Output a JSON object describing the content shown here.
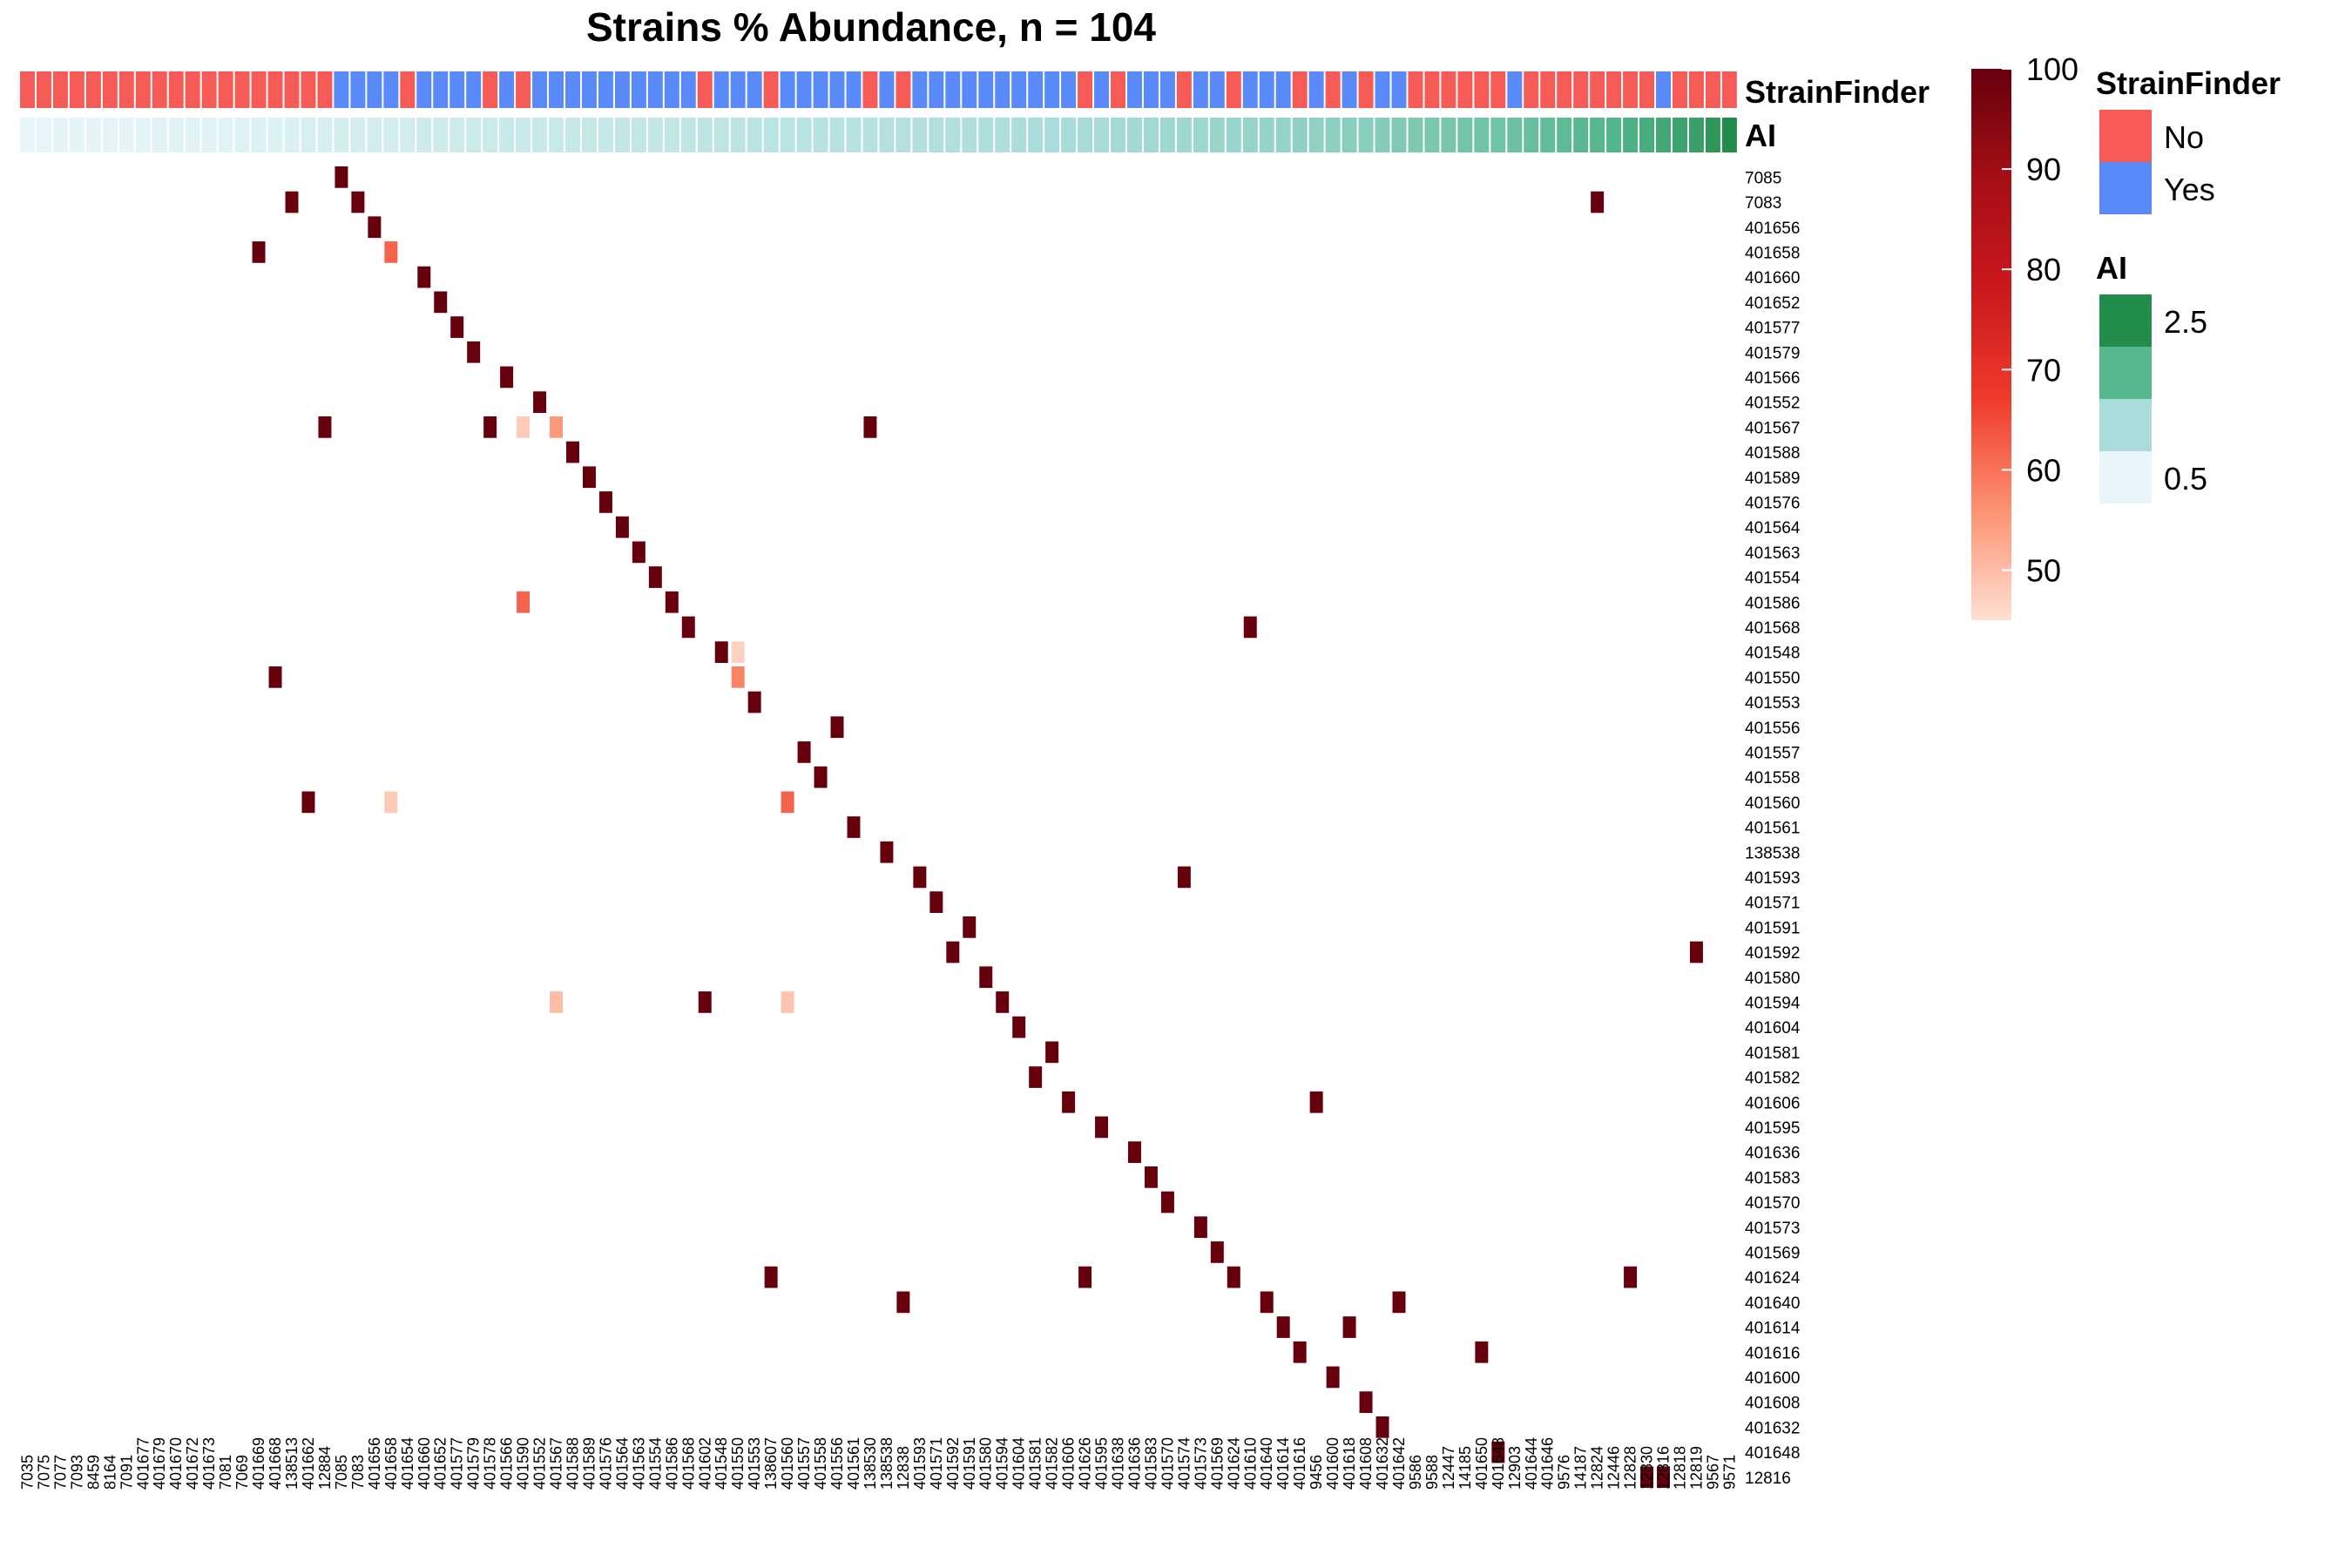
{
  "chart_data": {
    "type": "heatmap",
    "title": "Strains % Abundance, n = 104",
    "columns": [
      "7035",
      "7075",
      "7077",
      "7093",
      "8459",
      "8164",
      "7091",
      "401677",
      "401679",
      "401670",
      "401672",
      "401673",
      "7081",
      "7069",
      "401669",
      "401668",
      "138513",
      "401662",
      "12884",
      "7085",
      "7083",
      "401656",
      "401658",
      "401654",
      "401660",
      "401652",
      "401577",
      "401579",
      "401578",
      "401566",
      "401590",
      "401552",
      "401567",
      "401588",
      "401589",
      "401576",
      "401564",
      "401563",
      "401554",
      "401586",
      "401568",
      "401602",
      "401548",
      "401550",
      "401553",
      "138607",
      "401560",
      "401557",
      "401558",
      "401556",
      "401561",
      "138530",
      "138538",
      "12838",
      "401593",
      "401571",
      "401592",
      "401591",
      "401580",
      "401594",
      "401604",
      "401581",
      "401582",
      "401606",
      "401626",
      "401595",
      "401638",
      "401636",
      "401583",
      "401570",
      "401574",
      "401573",
      "401569",
      "401624",
      "401610",
      "401640",
      "401614",
      "401616",
      "9456",
      "401600",
      "401618",
      "401608",
      "401632",
      "401642",
      "9586",
      "9588",
      "12447",
      "14185",
      "401650",
      "401648",
      "12903",
      "401644",
      "401646",
      "9576",
      "14187",
      "12824",
      "12446",
      "12828",
      "12830",
      "12816",
      "12818",
      "12819",
      "9567",
      "9571"
    ],
    "rows": [
      "7085",
      "7083",
      "401656",
      "401658",
      "401660",
      "401652",
      "401577",
      "401579",
      "401566",
      "401552",
      "401567",
      "401588",
      "401589",
      "401576",
      "401564",
      "401563",
      "401554",
      "401586",
      "401568",
      "401548",
      "401550",
      "401553",
      "401556",
      "401557",
      "401558",
      "401560",
      "401561",
      "138538",
      "401593",
      "401571",
      "401591",
      "401592",
      "401580",
      "401594",
      "401604",
      "401581",
      "401582",
      "401606",
      "401595",
      "401636",
      "401583",
      "401570",
      "401573",
      "401569",
      "401624",
      "401640",
      "401614",
      "401616",
      "401600",
      "401608",
      "401632",
      "401648",
      "12816"
    ],
    "cells": [
      [
        0,
        19,
        100
      ],
      [
        1,
        16,
        100
      ],
      [
        1,
        20,
        100
      ],
      [
        1,
        95,
        100
      ],
      [
        2,
        21,
        100
      ],
      [
        3,
        14,
        100
      ],
      [
        3,
        22,
        62
      ],
      [
        4,
        24,
        100
      ],
      [
        5,
        25,
        100
      ],
      [
        6,
        26,
        100
      ],
      [
        7,
        27,
        100
      ],
      [
        8,
        29,
        100
      ],
      [
        9,
        31,
        100
      ],
      [
        10,
        18,
        100
      ],
      [
        10,
        28,
        100
      ],
      [
        10,
        30,
        48
      ],
      [
        10,
        32,
        55
      ],
      [
        10,
        51,
        100
      ],
      [
        11,
        33,
        100
      ],
      [
        12,
        34,
        100
      ],
      [
        13,
        35,
        100
      ],
      [
        14,
        36,
        100
      ],
      [
        15,
        37,
        100
      ],
      [
        16,
        38,
        100
      ],
      [
        17,
        39,
        100
      ],
      [
        17,
        30,
        62
      ],
      [
        18,
        40,
        100
      ],
      [
        18,
        74,
        100
      ],
      [
        19,
        42,
        100
      ],
      [
        19,
        43,
        47
      ],
      [
        20,
        15,
        100
      ],
      [
        20,
        43,
        58
      ],
      [
        21,
        44,
        100
      ],
      [
        22,
        49,
        100
      ],
      [
        23,
        47,
        100
      ],
      [
        24,
        48,
        100
      ],
      [
        25,
        17,
        100
      ],
      [
        25,
        22,
        48
      ],
      [
        25,
        46,
        62
      ],
      [
        26,
        50,
        100
      ],
      [
        27,
        52,
        100
      ],
      [
        28,
        54,
        100
      ],
      [
        28,
        70,
        100
      ],
      [
        29,
        55,
        100
      ],
      [
        30,
        57,
        100
      ],
      [
        31,
        56,
        100
      ],
      [
        31,
        101,
        100
      ],
      [
        32,
        58,
        100
      ],
      [
        33,
        59,
        100
      ],
      [
        33,
        32,
        50
      ],
      [
        33,
        41,
        100
      ],
      [
        33,
        46,
        49
      ],
      [
        34,
        60,
        100
      ],
      [
        35,
        62,
        100
      ],
      [
        36,
        61,
        100
      ],
      [
        37,
        63,
        100
      ],
      [
        37,
        78,
        100
      ],
      [
        38,
        65,
        100
      ],
      [
        39,
        67,
        100
      ],
      [
        40,
        68,
        100
      ],
      [
        41,
        69,
        100
      ],
      [
        42,
        71,
        100
      ],
      [
        43,
        72,
        100
      ],
      [
        44,
        73,
        100
      ],
      [
        44,
        45,
        100
      ],
      [
        44,
        64,
        100
      ],
      [
        44,
        97,
        100
      ],
      [
        45,
        75,
        100
      ],
      [
        45,
        53,
        100
      ],
      [
        45,
        83,
        100
      ],
      [
        46,
        76,
        100
      ],
      [
        46,
        80,
        100
      ],
      [
        47,
        77,
        100
      ],
      [
        47,
        88,
        100
      ],
      [
        48,
        79,
        100
      ],
      [
        49,
        81,
        100
      ],
      [
        50,
        82,
        100
      ],
      [
        51,
        89,
        100
      ],
      [
        52,
        98,
        100
      ],
      [
        52,
        99,
        100
      ]
    ],
    "annotations": {
      "StrainFinder": [
        "No",
        "No",
        "No",
        "No",
        "No",
        "No",
        "No",
        "No",
        "No",
        "No",
        "No",
        "No",
        "No",
        "No",
        "No",
        "No",
        "No",
        "No",
        "No",
        "Yes",
        "Yes",
        "Yes",
        "Yes",
        "No",
        "Yes",
        "Yes",
        "Yes",
        "Yes",
        "No",
        "Yes",
        "No",
        "Yes",
        "Yes",
        "Yes",
        "Yes",
        "Yes",
        "Yes",
        "Yes",
        "Yes",
        "Yes",
        "Yes",
        "No",
        "Yes",
        "Yes",
        "Yes",
        "No",
        "Yes",
        "Yes",
        "Yes",
        "Yes",
        "Yes",
        "No",
        "Yes",
        "No",
        "Yes",
        "Yes",
        "Yes",
        "Yes",
        "Yes",
        "Yes",
        "Yes",
        "Yes",
        "Yes",
        "Yes",
        "No",
        "Yes",
        "No",
        "Yes",
        "Yes",
        "Yes",
        "No",
        "Yes",
        "Yes",
        "No",
        "Yes",
        "Yes",
        "Yes",
        "No",
        "Yes",
        "No",
        "Yes",
        "No",
        "Yes",
        "Yes",
        "No",
        "No",
        "No",
        "No",
        "No",
        "No",
        "Yes",
        "No",
        "No",
        "No",
        "No",
        "No",
        "No",
        "No",
        "No",
        "Yes",
        "No",
        "No",
        "No",
        "No"
      ],
      "AI": [
        0.1,
        0.12,
        0.15,
        0.15,
        0.15,
        0.15,
        0.15,
        0.18,
        0.2,
        0.2,
        0.2,
        0.2,
        0.22,
        0.25,
        0.3,
        0.3,
        0.32,
        0.35,
        0.35,
        0.4,
        0.4,
        0.42,
        0.45,
        0.45,
        0.5,
        0.5,
        0.5,
        0.55,
        0.55,
        0.6,
        0.6,
        0.6,
        0.6,
        0.62,
        0.65,
        0.65,
        0.68,
        0.7,
        0.7,
        0.7,
        0.72,
        0.75,
        0.75,
        0.78,
        0.8,
        0.8,
        0.8,
        0.82,
        0.85,
        0.85,
        0.85,
        0.88,
        0.9,
        0.9,
        0.92,
        0.95,
        0.95,
        0.98,
        1.0,
        1.0,
        1.02,
        1.05,
        1.05,
        1.08,
        1.1,
        1.1,
        1.12,
        1.15,
        1.15,
        1.18,
        1.2,
        1.2,
        1.25,
        1.25,
        1.3,
        1.3,
        1.32,
        1.35,
        1.35,
        1.4,
        1.45,
        1.45,
        1.5,
        1.55,
        1.6,
        1.62,
        1.65,
        1.7,
        1.72,
        1.75,
        1.8,
        1.85,
        1.9,
        1.95,
        2.0,
        2.05,
        2.1,
        2.2,
        2.3,
        2.4,
        2.5,
        2.6,
        2.8,
        3.0
      ]
    },
    "annotation_colors": {
      "StrainFinder": {
        "No": "#f65b57",
        "Yes": "#5a8af9"
      },
      "AI": [
        "#e8f6f9",
        "#a9dcda",
        "#57b890",
        "#228d4a"
      ]
    },
    "color_scale": {
      "min": 45,
      "max": 100,
      "ticks": [
        50,
        60,
        70,
        80,
        90,
        100
      ],
      "colors": [
        "#fee0d2",
        "#fc9272",
        "#ef3b2c",
        "#cb181d",
        "#a50f15",
        "#67000d"
      ]
    },
    "legends": {
      "strainfinder_title": "StrainFinder",
      "strainfinder_levels": [
        "No",
        "Yes"
      ],
      "ai_title": "AI",
      "ai_ticks": [
        "2.5",
        "0.5"
      ]
    }
  }
}
